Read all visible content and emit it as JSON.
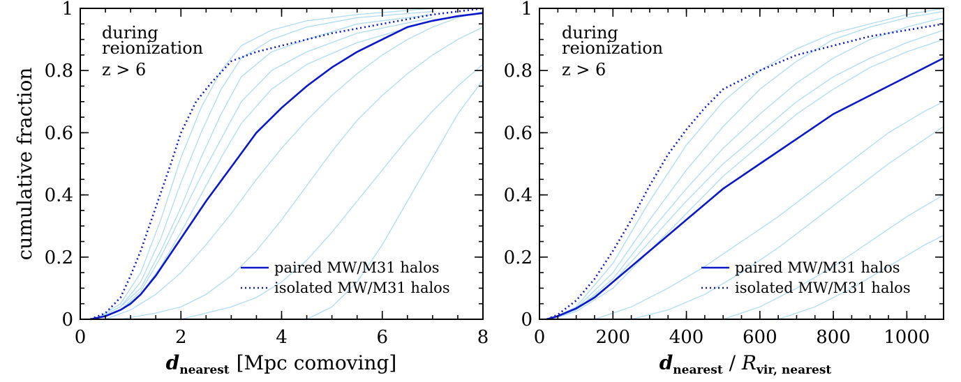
{
  "chart_data": [
    {
      "type": "line",
      "xlabel": "d",
      "xlabel_sub": "nearest",
      "xlabel_suffix": "[Mpc comoving]",
      "ylabel": "cumulative fraction",
      "xlim": [
        0,
        8
      ],
      "ylim": [
        0,
        1
      ],
      "xticks": [
        "0",
        "2",
        "4",
        "6",
        "8"
      ],
      "yticks": [
        "0",
        "0.2",
        "0.4",
        "0.6",
        "0.8",
        "1"
      ],
      "annotation": [
        "during",
        "reionization",
        "z > 6"
      ],
      "legend": [
        "paired MW/M31 halos",
        "isolated MW/M31 halos"
      ],
      "legend_position": "bottom-right",
      "series": [
        {
          "name": "paired MW/M31 halos",
          "style": "solid",
          "color": "#0a18c8",
          "x": [
            0.2,
            0.5,
            0.8,
            1.0,
            1.2,
            1.5,
            2.0,
            2.5,
            3.0,
            3.5,
            4.0,
            4.5,
            5.0,
            5.5,
            6.0,
            6.5,
            7.0,
            7.5,
            8.0
          ],
          "y": [
            0.0,
            0.01,
            0.03,
            0.05,
            0.08,
            0.14,
            0.26,
            0.38,
            0.49,
            0.6,
            0.68,
            0.75,
            0.81,
            0.86,
            0.9,
            0.94,
            0.96,
            0.975,
            0.985
          ]
        },
        {
          "name": "isolated MW/M31 halos",
          "style": "dotted",
          "color": "#0a18c8",
          "x": [
            0.2,
            0.5,
            0.8,
            1.0,
            1.2,
            1.5,
            1.8,
            2.0,
            2.3,
            2.6,
            3.0,
            3.5,
            4.0,
            5.0,
            6.0,
            7.0,
            8.0
          ],
          "y": [
            0.0,
            0.02,
            0.07,
            0.14,
            0.22,
            0.36,
            0.5,
            0.6,
            0.7,
            0.76,
            0.83,
            0.86,
            0.88,
            0.92,
            0.95,
            0.98,
            1.0
          ]
        },
        {
          "style": "thin",
          "color": "#aedcf2",
          "x": [
            0.3,
            0.8,
            1.2,
            1.6,
            2.0,
            2.4,
            2.8,
            3.2,
            3.8,
            4.5,
            5.5,
            7.0
          ],
          "y": [
            0.0,
            0.05,
            0.15,
            0.32,
            0.52,
            0.68,
            0.8,
            0.88,
            0.93,
            0.96,
            0.98,
            1.0
          ]
        },
        {
          "style": "thin",
          "color": "#aedcf2",
          "x": [
            0.3,
            0.8,
            1.2,
            1.6,
            2.0,
            2.4,
            2.8,
            3.2,
            3.8,
            4.5,
            5.5,
            7.0
          ],
          "y": [
            0.0,
            0.04,
            0.12,
            0.26,
            0.44,
            0.6,
            0.74,
            0.84,
            0.9,
            0.94,
            0.97,
            0.99
          ]
        },
        {
          "style": "thin",
          "color": "#aedcf2",
          "x": [
            0.3,
            0.8,
            1.2,
            1.6,
            2.0,
            2.4,
            2.8,
            3.2,
            3.8,
            4.5,
            5.5,
            7.0
          ],
          "y": [
            0.0,
            0.04,
            0.1,
            0.22,
            0.36,
            0.52,
            0.66,
            0.78,
            0.86,
            0.9,
            0.95,
            0.98
          ]
        },
        {
          "style": "thin",
          "color": "#aedcf2",
          "x": [
            0.3,
            0.8,
            1.2,
            1.6,
            2.0,
            2.4,
            2.8,
            3.2,
            3.8,
            4.5,
            5.5,
            7.0
          ],
          "y": [
            0.0,
            0.03,
            0.09,
            0.2,
            0.33,
            0.46,
            0.58,
            0.7,
            0.8,
            0.86,
            0.92,
            0.97
          ]
        },
        {
          "style": "thin",
          "color": "#aedcf2",
          "x": [
            0.3,
            0.8,
            1.2,
            1.6,
            2.0,
            2.4,
            2.8,
            3.2,
            3.8,
            4.5,
            5.5,
            7.0
          ],
          "y": [
            0.0,
            0.03,
            0.08,
            0.17,
            0.28,
            0.4,
            0.52,
            0.63,
            0.74,
            0.82,
            0.89,
            0.96
          ]
        },
        {
          "style": "thin",
          "color": "#aedcf2",
          "x": [
            0.5,
            1.0,
            1.5,
            2.0,
            2.5,
            3.0,
            3.5,
            4.0,
            4.5,
            5.0,
            5.5,
            6.0,
            6.5,
            7.0,
            7.5,
            8.0
          ],
          "y": [
            0.0,
            0.03,
            0.08,
            0.15,
            0.24,
            0.34,
            0.45,
            0.55,
            0.64,
            0.72,
            0.79,
            0.85,
            0.9,
            0.94,
            0.97,
            0.99
          ]
        },
        {
          "style": "thin",
          "color": "#aedcf2",
          "x": [
            0.8,
            1.5,
            2.0,
            2.5,
            3.0,
            3.5,
            4.0,
            4.5,
            5.0,
            5.5,
            6.0,
            6.5,
            7.0,
            7.5,
            8.0
          ],
          "y": [
            0.0,
            0.02,
            0.04,
            0.08,
            0.14,
            0.22,
            0.32,
            0.43,
            0.54,
            0.64,
            0.72,
            0.79,
            0.85,
            0.9,
            0.94
          ]
        },
        {
          "style": "thin",
          "color": "#aedcf2",
          "x": [
            2.0,
            2.5,
            3.0,
            3.5,
            4.0,
            4.5,
            5.0,
            5.5,
            6.0,
            6.5,
            7.0,
            7.5,
            8.0
          ],
          "y": [
            0.0,
            0.02,
            0.04,
            0.07,
            0.12,
            0.19,
            0.28,
            0.38,
            0.48,
            0.58,
            0.67,
            0.75,
            0.82
          ]
        },
        {
          "style": "thin",
          "color": "#aedcf2",
          "x": [
            4.5,
            5.0,
            5.5,
            6.0,
            6.5,
            7.0,
            7.5,
            8.0
          ],
          "y": [
            0.0,
            0.04,
            0.12,
            0.24,
            0.38,
            0.52,
            0.66,
            0.77
          ]
        }
      ]
    },
    {
      "type": "line",
      "xlabel": "d",
      "xlabel_sub": "nearest",
      "xlabel_mid": " / ",
      "xlabel_r": "R",
      "xlabel_r_sub": "vir, nearest",
      "xlim": [
        0,
        1100
      ],
      "ylim": [
        0,
        1
      ],
      "xticks": [
        "0",
        "200",
        "400",
        "600",
        "800",
        "1000"
      ],
      "yticks": [
        "0",
        "0.2",
        "0.4",
        "0.6",
        "0.8",
        "1"
      ],
      "annotation": [
        "during",
        "reionization",
        "z > 6"
      ],
      "legend": [
        "paired MW/M31 halos",
        "isolated MW/M31 halos"
      ],
      "legend_position": "bottom-right",
      "series": [
        {
          "name": "paired MW/M31 halos",
          "style": "solid",
          "color": "#0a18c8",
          "x": [
            20,
            50,
            100,
            150,
            200,
            250,
            300,
            350,
            400,
            450,
            500,
            600,
            700,
            800,
            900,
            1000,
            1100
          ],
          "y": [
            0.0,
            0.01,
            0.035,
            0.07,
            0.12,
            0.17,
            0.22,
            0.27,
            0.32,
            0.37,
            0.42,
            0.5,
            0.58,
            0.66,
            0.72,
            0.78,
            0.84
          ]
        },
        {
          "name": "isolated MW/M31 halos",
          "style": "dotted",
          "color": "#0a18c8",
          "x": [
            20,
            50,
            100,
            150,
            200,
            250,
            300,
            350,
            400,
            450,
            500,
            600,
            700,
            800,
            900,
            1000,
            1100
          ],
          "y": [
            0.0,
            0.015,
            0.06,
            0.13,
            0.22,
            0.32,
            0.43,
            0.53,
            0.61,
            0.68,
            0.74,
            0.8,
            0.85,
            0.88,
            0.91,
            0.93,
            0.95
          ]
        },
        {
          "style": "thin",
          "color": "#aedcf2",
          "x": [
            30,
            100,
            200,
            300,
            400,
            500,
            600,
            700,
            800,
            900,
            1000,
            1100
          ],
          "y": [
            0.0,
            0.04,
            0.18,
            0.38,
            0.56,
            0.7,
            0.8,
            0.87,
            0.92,
            0.95,
            0.98,
            1.0
          ]
        },
        {
          "style": "thin",
          "color": "#aedcf2",
          "x": [
            30,
            100,
            200,
            300,
            400,
            500,
            600,
            700,
            800,
            900,
            1000,
            1100
          ],
          "y": [
            0.0,
            0.035,
            0.15,
            0.32,
            0.48,
            0.62,
            0.74,
            0.83,
            0.9,
            0.94,
            0.97,
            0.99
          ]
        },
        {
          "style": "thin",
          "color": "#aedcf2",
          "x": [
            30,
            100,
            200,
            300,
            400,
            500,
            600,
            700,
            800,
            900,
            1000,
            1100
          ],
          "y": [
            0.0,
            0.03,
            0.13,
            0.28,
            0.42,
            0.55,
            0.66,
            0.76,
            0.84,
            0.9,
            0.94,
            0.97
          ]
        },
        {
          "style": "thin",
          "color": "#aedcf2",
          "x": [
            30,
            100,
            200,
            300,
            400,
            500,
            600,
            700,
            800,
            900,
            1000,
            1100
          ],
          "y": [
            0.0,
            0.03,
            0.12,
            0.25,
            0.38,
            0.5,
            0.6,
            0.7,
            0.78,
            0.84,
            0.89,
            0.93
          ]
        },
        {
          "style": "thin",
          "color": "#aedcf2",
          "x": [
            30,
            100,
            200,
            300,
            400,
            500,
            600,
            700,
            800,
            900,
            1000,
            1100
          ],
          "y": [
            0.0,
            0.025,
            0.1,
            0.22,
            0.34,
            0.46,
            0.56,
            0.66,
            0.74,
            0.81,
            0.86,
            0.9
          ]
        },
        {
          "style": "thin",
          "color": "#aedcf2",
          "x": [
            150,
            250,
            350,
            450,
            550,
            650,
            750,
            850,
            950,
            1050,
            1100
          ],
          "y": [
            0.0,
            0.04,
            0.1,
            0.17,
            0.25,
            0.33,
            0.42,
            0.51,
            0.6,
            0.67,
            0.7
          ]
        },
        {
          "style": "thin",
          "color": "#aedcf2",
          "x": [
            250,
            350,
            450,
            550,
            650,
            750,
            850,
            950,
            1050,
            1100
          ],
          "y": [
            0.0,
            0.03,
            0.08,
            0.15,
            0.23,
            0.32,
            0.41,
            0.5,
            0.58,
            0.62
          ]
        },
        {
          "style": "thin",
          "color": "#aedcf2",
          "x": [
            500,
            600,
            700,
            800,
            900,
            1000,
            1100
          ],
          "y": [
            0.0,
            0.04,
            0.1,
            0.17,
            0.25,
            0.33,
            0.4
          ]
        },
        {
          "style": "thin",
          "color": "#aedcf2",
          "x": [
            650,
            750,
            850,
            950,
            1050,
            1100
          ],
          "y": [
            0.0,
            0.04,
            0.1,
            0.17,
            0.24,
            0.27
          ]
        }
      ]
    }
  ]
}
